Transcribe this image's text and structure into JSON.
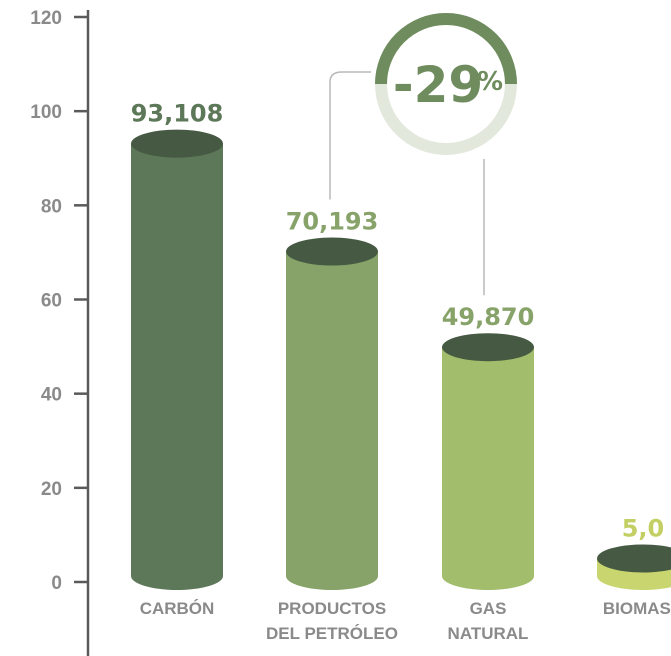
{
  "chart_data": {
    "type": "bar",
    "categories": [
      [
        "CARBÓN"
      ],
      [
        "PRODUCTOS",
        "DEL PETRÓLEO"
      ],
      [
        "GAS",
        "NATURAL"
      ],
      [
        "BIOMASA"
      ]
    ],
    "values": [
      93.108,
      70.193,
      49.87,
      5.0
    ],
    "value_labels": [
      "93,108",
      "70,193",
      "49,870",
      "5,0"
    ],
    "yticks": [
      "0",
      "20",
      "40",
      "60",
      "80",
      "100",
      "120"
    ],
    "ylim": [
      0,
      120
    ],
    "grid": false,
    "colors": {
      "bars": [
        "#5d7858",
        "#87a36a",
        "#a2be6c",
        "#c9d56e"
      ],
      "tops": [
        "#465a43",
        "#465a43",
        "#465a43",
        "#465a43"
      ],
      "value_labels": [
        "#5d7858",
        "#87a36a",
        "#87a36a",
        "#c3cf63"
      ],
      "axis": "#5a5a5a",
      "tick_text": "#8a8a8a"
    },
    "annotation": {
      "text": "-29",
      "suffix": "%",
      "ring_color": "#6f8c5e",
      "ring_track_color": "#e3e8dd",
      "text_color": "#6f8c5e",
      "connects": [
        "PRODUCTOS DEL PETRÓLEO",
        "GAS NATURAL"
      ]
    }
  }
}
